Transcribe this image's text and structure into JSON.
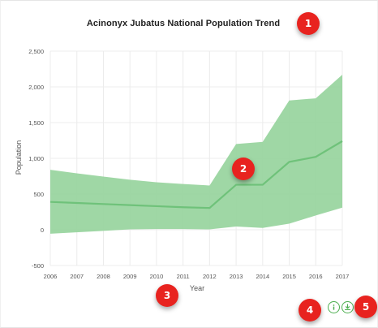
{
  "page": {
    "title": "Acinonyx Jubatus National Population Trend"
  },
  "callouts": {
    "c1": "1",
    "c2": "2",
    "c3": "3",
    "c4": "4",
    "c5": "5"
  },
  "toolbar": {
    "info_icon": "info-icon",
    "download_icon": "download-icon"
  },
  "colors": {
    "band_fill": "#9ad5a0",
    "line": "#6fc27a",
    "grid": "#ececec",
    "axis_text": "#555555",
    "callout": "#e8231f"
  },
  "chart_data": {
    "type": "area",
    "title": "Acinonyx Jubatus National Population Trend",
    "xlabel": "Year",
    "ylabel": "Population",
    "x": [
      2006,
      2007,
      2008,
      2009,
      2010,
      2011,
      2012,
      2013,
      2014,
      2015,
      2016,
      2017
    ],
    "xlim": [
      2006,
      2017
    ],
    "ylim": [
      -500,
      2500
    ],
    "yticks": [
      -500,
      0,
      500,
      1000,
      1500,
      2000,
      2500
    ],
    "ytick_labels": [
      "-500",
      "0",
      "500",
      "1,000",
      "1,500",
      "2,000",
      "2,500"
    ],
    "series": [
      {
        "values": [
          390,
          375,
          360,
          345,
          330,
          315,
          305,
          630,
          630,
          950,
          1020,
          1240
        ]
      }
    ],
    "band": {
      "upper": [
        840,
        790,
        745,
        700,
        665,
        640,
        620,
        1200,
        1230,
        1810,
        1840,
        2170
      ],
      "lower": [
        -55,
        -35,
        -15,
        5,
        10,
        10,
        5,
        45,
        25,
        85,
        200,
        310
      ]
    },
    "grid": true,
    "legend": "none"
  }
}
